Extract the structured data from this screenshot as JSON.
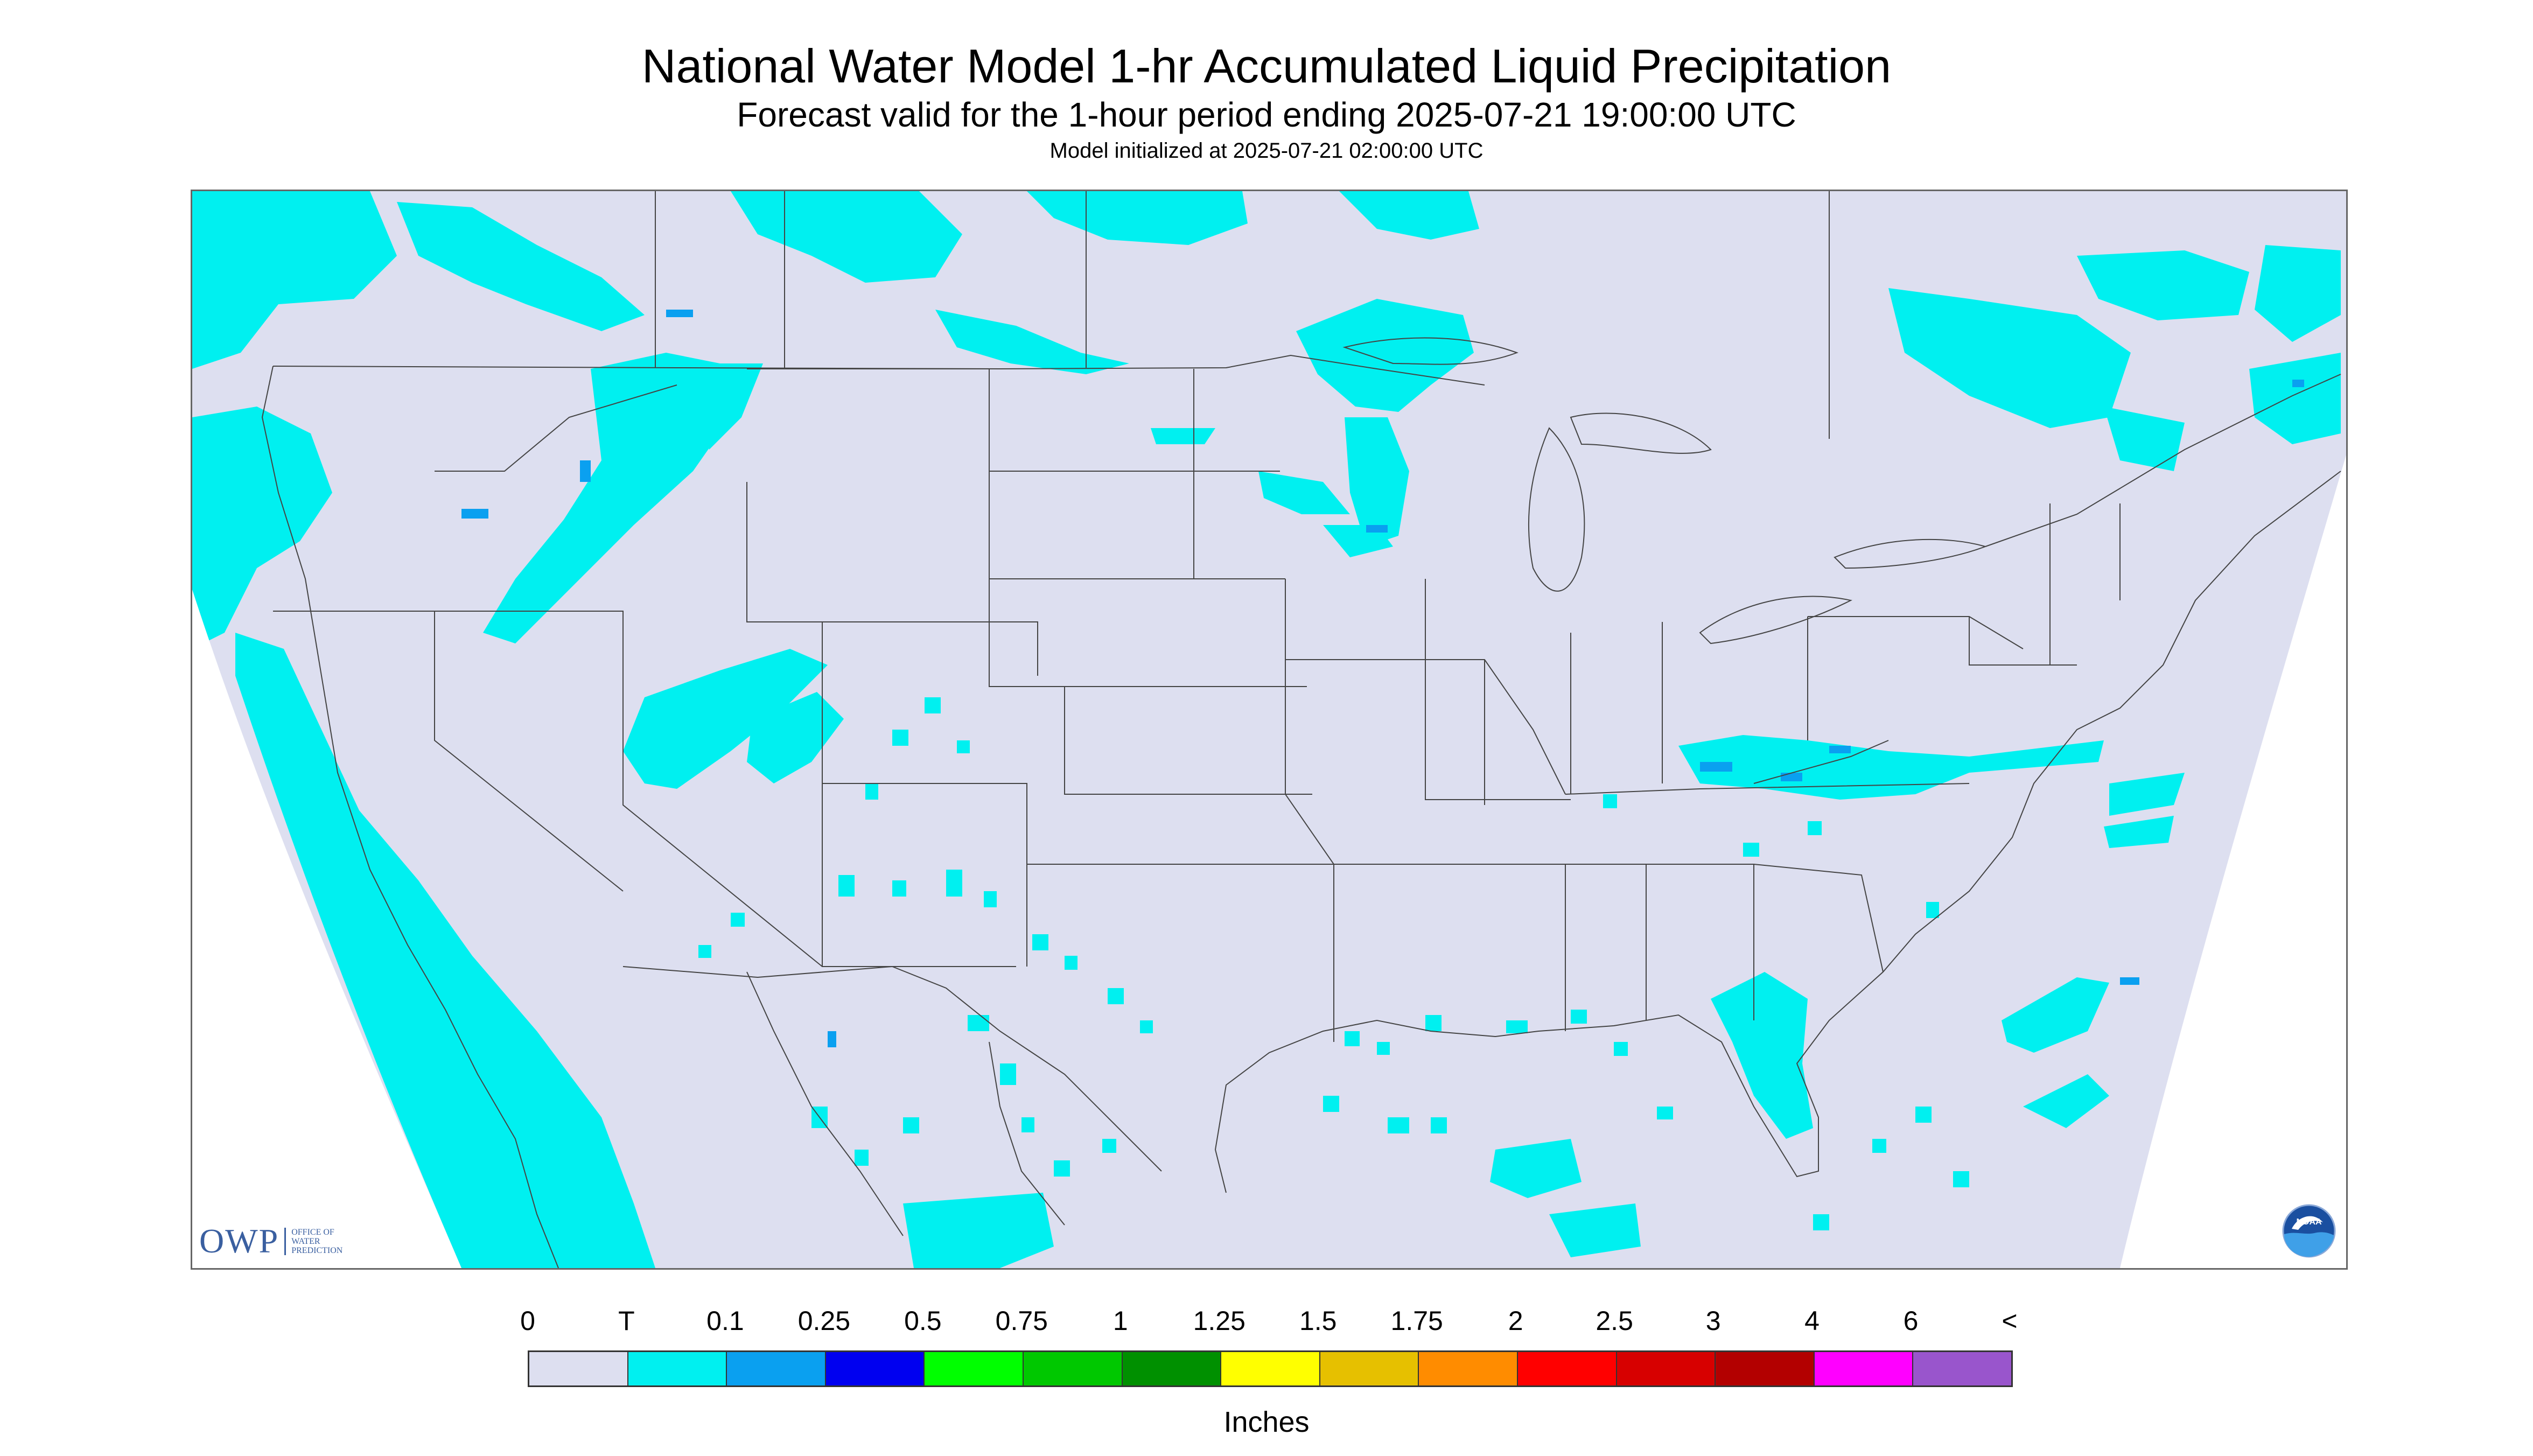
{
  "title": "National Water Model 1-hr Accumulated Liquid Precipitation",
  "subtitle": "Forecast valid for the 1-hour period ending 2025-07-21 19:00:00 UTC",
  "init_line": "Model initialized at 2025-07-21 02:00:00 UTC",
  "logo_left": {
    "text": "OWP",
    "sub_lines": [
      "OFFICE OF",
      "WATER",
      "PREDICTION"
    ]
  },
  "logo_right": {
    "text": "NOAA"
  },
  "colors": {
    "no_data_background": "#ffffff",
    "zero": "#dddff0",
    "trace": "#00f0f0",
    "light_blue": "#0aa0f0",
    "boundary_line": "#444444"
  },
  "legend": {
    "labels": [
      "0",
      "T",
      "0.1",
      "0.25",
      "0.5",
      "0.75",
      "1",
      "1.25",
      "1.5",
      "1.75",
      "2",
      "2.5",
      "3",
      "4",
      "6",
      "<"
    ],
    "colors": [
      "#dddff0",
      "#00f0f0",
      "#0aa0f0",
      "#0000f0",
      "#00ff00",
      "#00c800",
      "#009000",
      "#ffff00",
      "#e6c000",
      "#ff8c00",
      "#ff0000",
      "#d70000",
      "#b30000",
      "#ff00ff",
      "#9955cc"
    ],
    "units": "Inches"
  }
}
